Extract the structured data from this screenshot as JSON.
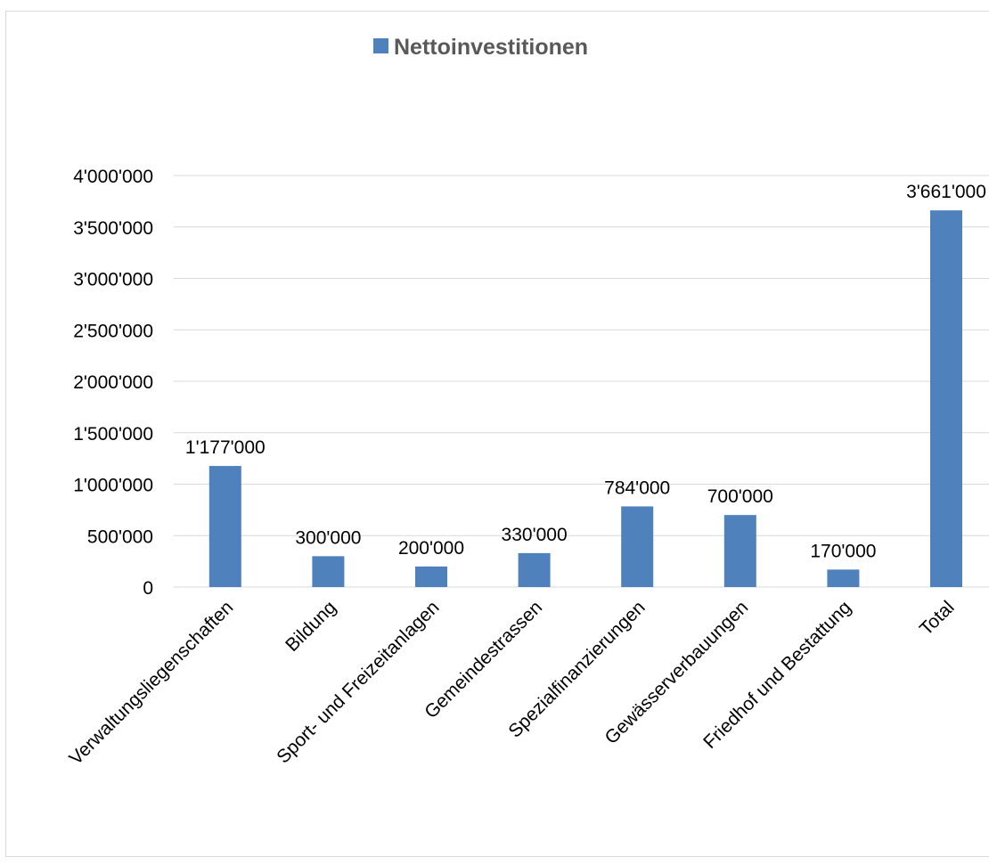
{
  "chart_data": {
    "type": "bar",
    "legend": {
      "position": "top",
      "entry": "Nettoinvestitionen",
      "swatch_color": "#4f81bd"
    },
    "categories": [
      "Verwaltungsliegenschaften",
      "Bildung",
      "Sport- und Freizeitanlagen",
      "Gemeindestrassen",
      "Spezialfinanzierungen",
      "Gewässerverbauungen",
      "Friedhof und Bestattung",
      "Total"
    ],
    "series": [
      {
        "name": "Nettoinvestitionen",
        "color": "#4f81bd",
        "values": [
          1177000,
          300000,
          200000,
          330000,
          784000,
          700000,
          170000,
          3661000
        ],
        "data_labels": [
          "1'177'000",
          "300'000",
          "200'000",
          "330'000",
          "784'000",
          "700'000",
          "170'000",
          "3'661'000"
        ]
      }
    ],
    "y_axis": {
      "ylim": [
        0,
        4000000
      ],
      "ticks": [
        0,
        500000,
        1000000,
        1500000,
        2000000,
        2500000,
        3000000,
        3500000,
        4000000
      ],
      "tick_labels": [
        "0",
        "500'000",
        "1'000'000",
        "1'500'000",
        "2'000'000",
        "2'500'000",
        "3'000'000",
        "3'500'000",
        "4'000'000"
      ]
    },
    "grid": true,
    "colors": {
      "bar": "#4f81bd",
      "gridline": "#d9d9d9",
      "text": "#000000",
      "legend_text": "#595959"
    }
  }
}
